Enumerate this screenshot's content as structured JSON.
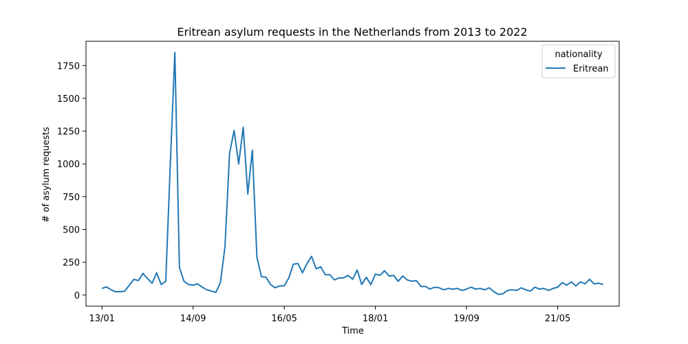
{
  "chart_data": {
    "type": "line",
    "title": "Eritrean asylum requests in the Netherlands from 2013 to 2022",
    "xlabel": "Time",
    "ylabel": "# of asylum requests",
    "x_tick_labels": [
      "13/01",
      "14/09",
      "16/05",
      "18/01",
      "19/09",
      "21/05"
    ],
    "x_tick_positions": [
      0,
      20,
      40,
      60,
      80,
      100
    ],
    "xlim": [
      -3.5,
      113.5
    ],
    "ylim": [
      -85,
      1935
    ],
    "y_ticks": [
      0,
      250,
      500,
      750,
      1000,
      1250,
      1500,
      1750
    ],
    "grid": false,
    "legend": {
      "title": "nationality",
      "placement": "top-right"
    },
    "series": [
      {
        "name": "Eritrean",
        "color": "#1f77b4",
        "values": [
          50,
          62,
          40,
          25,
          25,
          30,
          75,
          120,
          110,
          165,
          125,
          90,
          170,
          80,
          105,
          1000,
          1850,
          210,
          105,
          80,
          75,
          85,
          60,
          40,
          30,
          20,
          95,
          370,
          1080,
          1255,
          1000,
          1280,
          770,
          1105,
          290,
          140,
          135,
          80,
          55,
          70,
          70,
          130,
          235,
          240,
          170,
          240,
          295,
          200,
          215,
          155,
          155,
          115,
          130,
          130,
          150,
          120,
          190,
          80,
          135,
          80,
          160,
          150,
          185,
          145,
          150,
          105,
          145,
          115,
          105,
          110,
          65,
          65,
          45,
          60,
          55,
          40,
          50,
          45,
          50,
          35,
          45,
          60,
          45,
          50,
          40,
          55,
          25,
          5,
          10,
          35,
          40,
          35,
          55,
          40,
          30,
          60,
          45,
          50,
          35,
          50,
          60,
          95,
          75,
          100,
          70,
          100,
          85,
          120,
          85,
          90,
          80
        ]
      }
    ]
  }
}
